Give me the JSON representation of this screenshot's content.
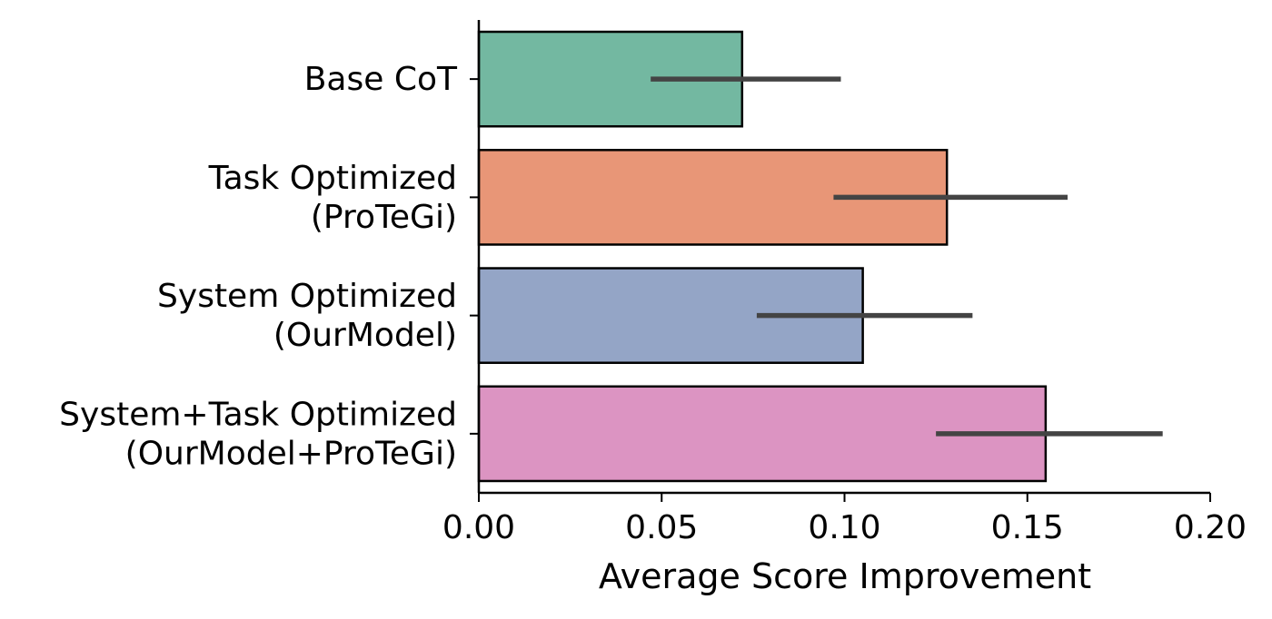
{
  "chart_data": {
    "type": "bar",
    "orientation": "horizontal",
    "categories": [
      [
        "Base CoT"
      ],
      [
        "Task Optimized",
        "(ProTeGi)"
      ],
      [
        "System Optimized",
        "(OurModel)"
      ],
      [
        "System+Task Optimized",
        "(OurModel+ProTeGi)"
      ]
    ],
    "values": [
      0.072,
      0.128,
      0.105,
      0.155
    ],
    "error_low": [
      0.047,
      0.097,
      0.076,
      0.125
    ],
    "error_high": [
      0.099,
      0.161,
      0.135,
      0.187
    ],
    "colors": [
      "#73b8a1",
      "#e89677",
      "#94a5c6",
      "#dc94c2"
    ],
    "error_color": "#444444",
    "xlim": [
      0,
      0.2
    ],
    "xticks": [
      0,
      0.05,
      0.1,
      0.15,
      0.2
    ],
    "xtick_labels": [
      "0.00",
      "0.05",
      "0.10",
      "0.15",
      "0.20"
    ],
    "xlabel": "Average Score Improvement",
    "ylabel": "",
    "title": "",
    "grid": false,
    "legend": "none"
  }
}
